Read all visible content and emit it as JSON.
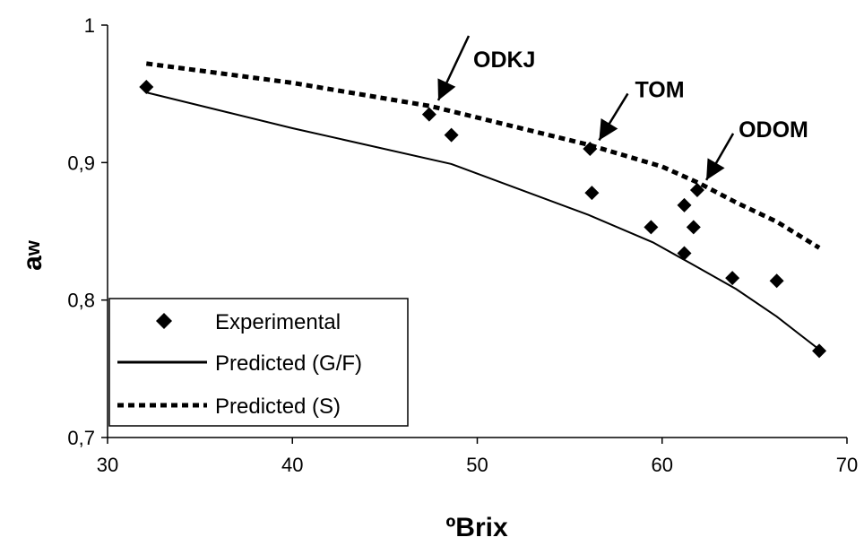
{
  "chart_data": {
    "type": "scatter",
    "title": "",
    "xlabel": "ºBrix",
    "ylabel_main": "a",
    "ylabel_sub": "w",
    "xlim": [
      30,
      70
    ],
    "ylim": [
      0.7,
      1.0
    ],
    "x_ticks": [
      30,
      40,
      50,
      60,
      70
    ],
    "x_tick_labels": [
      "30",
      "40",
      "50",
      "60",
      "70"
    ],
    "y_ticks": [
      0.7,
      0.8,
      0.9,
      1.0
    ],
    "y_tick_labels": [
      "0,7",
      "0,8",
      "0,9",
      "1"
    ],
    "grid": false,
    "legend_position": "bottom-left",
    "series": [
      {
        "name": "Experimental",
        "kind": "scatter",
        "marker": "diamond",
        "points": [
          {
            "x": 32.1,
            "y": 0.955
          },
          {
            "x": 47.4,
            "y": 0.935
          },
          {
            "x": 48.6,
            "y": 0.92
          },
          {
            "x": 56.1,
            "y": 0.91
          },
          {
            "x": 56.2,
            "y": 0.878
          },
          {
            "x": 59.4,
            "y": 0.853
          },
          {
            "x": 61.2,
            "y": 0.869
          },
          {
            "x": 61.2,
            "y": 0.834
          },
          {
            "x": 61.7,
            "y": 0.853
          },
          {
            "x": 61.9,
            "y": 0.88
          },
          {
            "x": 63.8,
            "y": 0.816
          },
          {
            "x": 66.2,
            "y": 0.814
          },
          {
            "x": 68.5,
            "y": 0.763
          }
        ]
      },
      {
        "name": "Predicted (G/F)",
        "kind": "line",
        "style": "solid",
        "points": [
          {
            "x": 32.1,
            "y": 0.951
          },
          {
            "x": 40.0,
            "y": 0.925
          },
          {
            "x": 48.6,
            "y": 0.899
          },
          {
            "x": 56.0,
            "y": 0.862
          },
          {
            "x": 59.5,
            "y": 0.842
          },
          {
            "x": 61.5,
            "y": 0.827
          },
          {
            "x": 64.0,
            "y": 0.808
          },
          {
            "x": 66.2,
            "y": 0.788
          },
          {
            "x": 68.5,
            "y": 0.764
          }
        ]
      },
      {
        "name": "Predicted (S)",
        "kind": "line",
        "style": "dotted",
        "points": [
          {
            "x": 32.1,
            "y": 0.972
          },
          {
            "x": 40.0,
            "y": 0.958
          },
          {
            "x": 47.5,
            "y": 0.941
          },
          {
            "x": 56.0,
            "y": 0.913
          },
          {
            "x": 60.0,
            "y": 0.897
          },
          {
            "x": 62.0,
            "y": 0.885
          },
          {
            "x": 64.0,
            "y": 0.871
          },
          {
            "x": 66.2,
            "y": 0.857
          },
          {
            "x": 68.5,
            "y": 0.838
          }
        ]
      }
    ],
    "annotations": [
      {
        "label": "ODKJ",
        "target": {
          "x": 47.6,
          "y": 0.94
        }
      },
      {
        "label": "TOM",
        "target": {
          "x": 56.3,
          "y": 0.911
        }
      },
      {
        "label": "ODOM",
        "target": {
          "x": 62.1,
          "y": 0.882
        }
      }
    ]
  }
}
